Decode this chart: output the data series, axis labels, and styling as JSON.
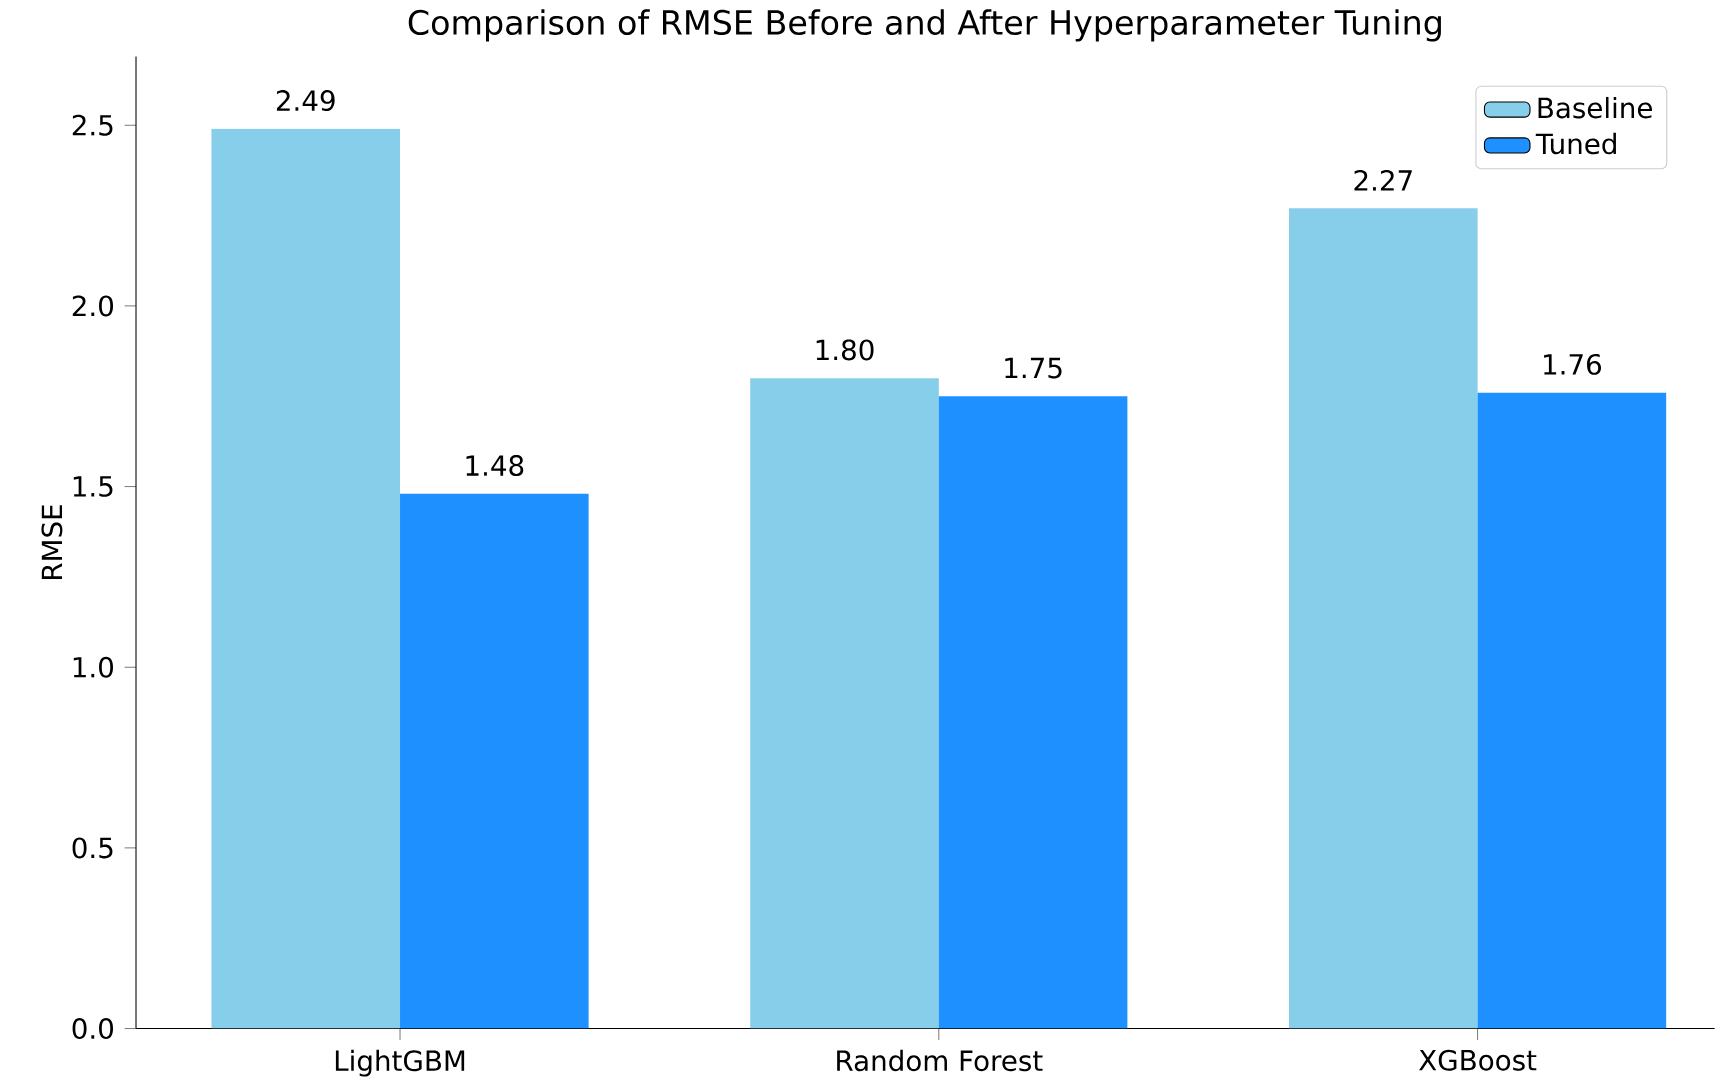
{
  "chart_data": {
    "type": "bar",
    "title": "Comparison of RMSE Before and After Hyperparameter Tuning",
    "ylabel": "RMSE",
    "categories": [
      "LightGBM",
      "Random Forest",
      "XGBoost"
    ],
    "series": [
      {
        "name": "Baseline",
        "color": "#87ceeb",
        "values": [
          2.49,
          1.8,
          2.27
        ],
        "value_labels": [
          "2.49",
          "1.80",
          "2.27"
        ]
      },
      {
        "name": "Tuned",
        "color": "#1e90ff",
        "values": [
          1.48,
          1.75,
          1.76
        ],
        "value_labels": [
          "1.48",
          "1.75",
          "1.76"
        ]
      }
    ],
    "ylim": [
      0,
      2.69
    ],
    "yticks": [
      {
        "value": 0,
        "label": "0.0"
      },
      {
        "value": 0.5,
        "label": "0.5"
      },
      {
        "value": 1,
        "label": "1.0"
      },
      {
        "value": 1.5,
        "label": "1.5"
      },
      {
        "value": 2,
        "label": "2.0"
      },
      {
        "value": 2.5,
        "label": "2.5"
      }
    ],
    "legend": "top right",
    "grid": false
  }
}
